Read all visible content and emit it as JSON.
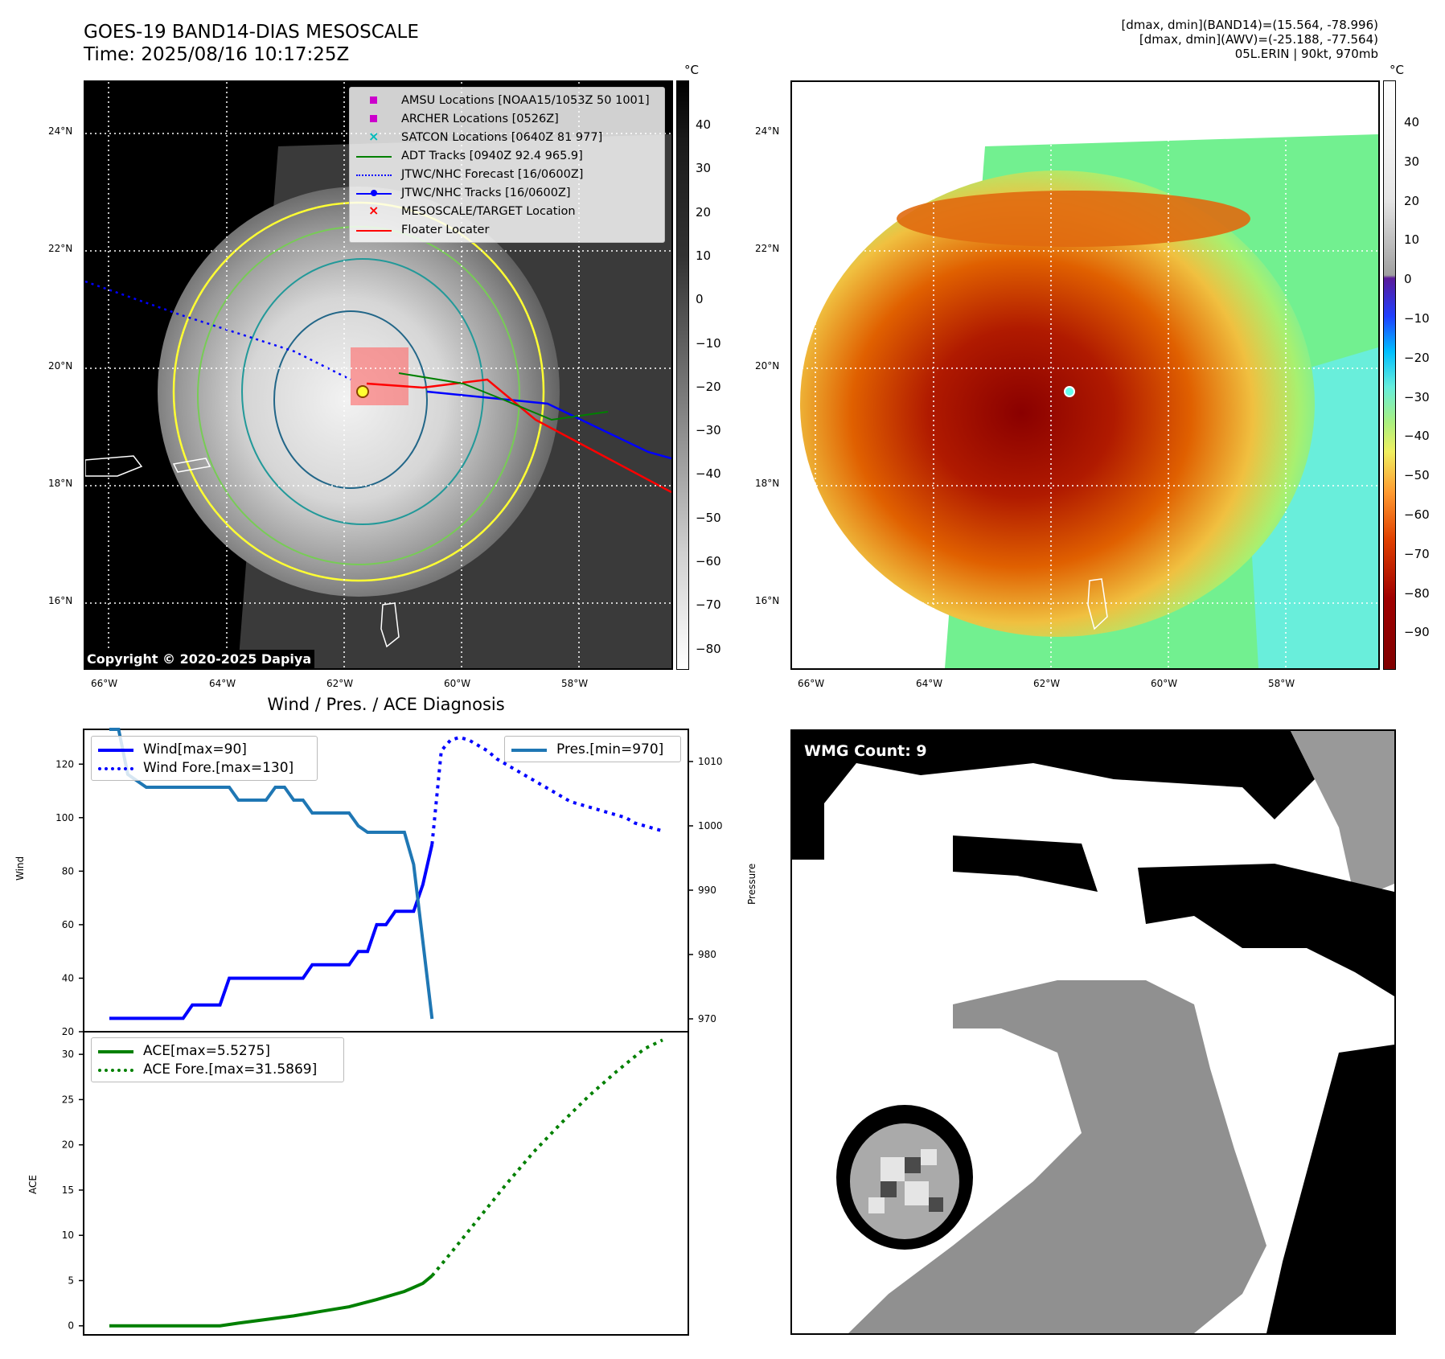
{
  "header": {
    "title_line1": "GOES-19 BAND14-DIAS MESOSCALE",
    "title_line2": "Time: 2025/08/16 10:17:25Z",
    "info_line1": "[dmax, dmin](BAND14)=(15.564, -78.996)",
    "info_line2": "[dmax, dmin](AWV)=(-25.188, -77.564)",
    "info_line3": "05L.ERIN | 90kt, 970mb"
  },
  "map": {
    "lon_ticks": [
      "66°W",
      "64°W",
      "62°W",
      "60°W",
      "58°W"
    ],
    "lat_ticks": [
      "24°N",
      "22°N",
      "20°N",
      "18°N",
      "16°N"
    ],
    "copyright": "Copyright © 2020-2025 Dapiya",
    "colorbar_unit": "°C",
    "colorbar_left_ticks": [
      "40",
      "30",
      "20",
      "10",
      "0",
      "−10",
      "−20",
      "−30",
      "−40",
      "−50",
      "−60",
      "−70",
      "−80"
    ],
    "colorbar_right_ticks": [
      "40",
      "30",
      "20",
      "10",
      "0",
      "−10",
      "−20",
      "−30",
      "−40",
      "−50",
      "−60",
      "−70",
      "−80",
      "−90"
    ],
    "legend": [
      {
        "label": "AMSU Locations [NOAA15/1053Z 50 1001]",
        "marker": "square",
        "color": "#cc00cc"
      },
      {
        "label": "ARCHER Locations [0526Z]",
        "marker": "square",
        "color": "#cc00cc"
      },
      {
        "label": "SATCON Locations [0640Z 81 977]",
        "marker": "x",
        "color": "#00bbbb"
      },
      {
        "label": "ADT Tracks [0940Z 92.4 965.9]",
        "marker": "line",
        "color": "#008000"
      },
      {
        "label": "JTWC/NHC Forecast [16/0600Z]",
        "marker": "dotted",
        "color": "#0000ff"
      },
      {
        "label": "JTWC/NHC Tracks [16/0600Z]",
        "marker": "line-dot",
        "color": "#0000ff"
      },
      {
        "label": "MESOSCALE/TARGET Location",
        "marker": "x",
        "color": "#ff0000"
      },
      {
        "label": "Floater Locater",
        "marker": "line",
        "color": "#ff0000"
      }
    ]
  },
  "diagnosis": {
    "title": "Wind / Pres. / ACE Diagnosis",
    "wind_ylabel": "Wind",
    "pres_ylabel": "Pressure",
    "ace_ylabel": "ACE",
    "wind_legend": [
      "Wind[max=90]",
      "Wind Fore.[max=130]"
    ],
    "pres_legend": [
      "Pres.[min=970]"
    ],
    "ace_legend": [
      "ACE[max=5.5275]",
      "ACE Fore.[max=31.5869]"
    ],
    "wind_ticks": [
      "120",
      "100",
      "80",
      "60",
      "40",
      "20"
    ],
    "pres_ticks": [
      "1010",
      "1000",
      "990",
      "980",
      "970"
    ],
    "ace_ticks": [
      "30",
      "25",
      "20",
      "15",
      "10",
      "5",
      "0"
    ]
  },
  "wmg": {
    "label": "WMG Count: 9"
  },
  "chart_data": [
    {
      "type": "line",
      "title": "Wind / Pres. / ACE Diagnosis",
      "ylabel": "Wind",
      "ylim": [
        20,
        133
      ],
      "series": [
        {
          "name": "Wind[max=90]",
          "style": "solid",
          "color": "#0000ff",
          "x": [
            0,
            1,
            2,
            3,
            4,
            5,
            6,
            7,
            8,
            9,
            10,
            11,
            12,
            13,
            14,
            15,
            16,
            17,
            18,
            19,
            20,
            21,
            22,
            23,
            24,
            25,
            26,
            27,
            28,
            29,
            30,
            31,
            32,
            33,
            34,
            35
          ],
          "values": [
            25,
            25,
            25,
            25,
            25,
            25,
            25,
            25,
            25,
            30,
            30,
            30,
            30,
            40,
            40,
            40,
            40,
            40,
            40,
            40,
            40,
            40,
            45,
            45,
            45,
            45,
            45,
            50,
            50,
            60,
            60,
            65,
            65,
            65,
            75,
            90
          ]
        },
        {
          "name": "Wind Fore.[max=130]",
          "style": "dotted",
          "color": "#0000ff",
          "x": [
            35,
            36,
            37,
            38,
            39,
            40,
            41,
            42,
            43,
            44,
            45,
            46,
            47,
            48,
            49,
            50,
            51,
            52,
            53,
            54,
            55,
            56,
            57,
            58,
            59,
            60
          ],
          "values": [
            90,
            125,
            129,
            130,
            129,
            127,
            125,
            122,
            120,
            118,
            116,
            114,
            112,
            110,
            108,
            106,
            105,
            104,
            103,
            102,
            101,
            100,
            98,
            97,
            96,
            95
          ]
        }
      ]
    },
    {
      "type": "line",
      "ylabel": "Pressure",
      "ylim": [
        968,
        1015
      ],
      "series": [
        {
          "name": "Pres.[min=970]",
          "style": "solid",
          "color": "#1f77b4",
          "x": [
            0,
            1,
            2,
            3,
            4,
            5,
            6,
            7,
            8,
            9,
            10,
            11,
            12,
            13,
            14,
            15,
            16,
            17,
            18,
            19,
            20,
            21,
            22,
            23,
            24,
            25,
            26,
            27,
            28,
            29,
            30,
            31,
            32,
            33,
            34,
            35
          ],
          "values": [
            1015,
            1015,
            1008,
            1007,
            1006,
            1006,
            1006,
            1006,
            1006,
            1006,
            1006,
            1006,
            1006,
            1006,
            1004,
            1004,
            1004,
            1004,
            1006,
            1006,
            1004,
            1004,
            1002,
            1002,
            1002,
            1002,
            1002,
            1000,
            999,
            999,
            999,
            999,
            999,
            994,
            982,
            970
          ]
        }
      ]
    },
    {
      "type": "line",
      "ylabel": "ACE",
      "ylim": [
        -1,
        32.5
      ],
      "series": [
        {
          "name": "ACE[max=5.5275]",
          "style": "solid",
          "color": "#008000",
          "x": [
            0,
            3,
            6,
            9,
            12,
            14,
            17,
            20,
            23,
            26,
            29,
            32,
            34,
            35
          ],
          "values": [
            0,
            0,
            0,
            0,
            0,
            0.3,
            0.7,
            1.1,
            1.6,
            2.1,
            2.9,
            3.8,
            4.7,
            5.5275
          ]
        },
        {
          "name": "ACE Fore.[max=31.5869]",
          "style": "dotted",
          "color": "#008000",
          "x": [
            35,
            37,
            40,
            43,
            46,
            49,
            52,
            55,
            58,
            60
          ],
          "values": [
            5.5275,
            8,
            11.8,
            15.6,
            19.2,
            22.4,
            25.4,
            28.1,
            30.6,
            31.5869
          ]
        }
      ]
    }
  ]
}
